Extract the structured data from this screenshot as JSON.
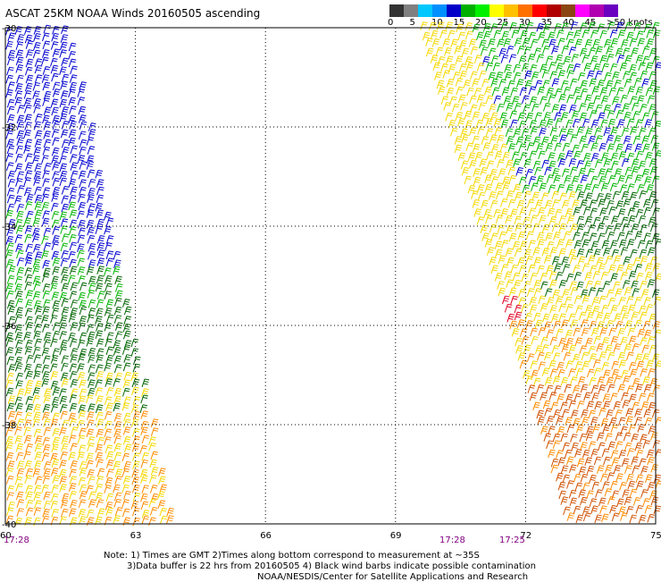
{
  "title": "ASCAT 25KM NOAA Winds 20160505 ascending",
  "colorbar": {
    "colors": [
      "#333333",
      "#808080",
      "#00c8ff",
      "#0090ff",
      "#0000c8",
      "#00b000",
      "#00f000",
      "#ffff00",
      "#ffc000",
      "#ff7000",
      "#ff0000",
      "#b00000",
      "#8b4513",
      "#ff00ff",
      "#b000b0",
      "#6a00c0"
    ],
    "labels": [
      "0",
      "5",
      "10",
      "15",
      "20",
      "25",
      "30",
      "35",
      "40",
      "45",
      ">50 knots"
    ]
  },
  "axes": {
    "lon_labels": [
      "60",
      "63",
      "66",
      "69",
      "72",
      "75"
    ],
    "lat_labels": [
      "-30",
      "-32",
      "-34",
      "-36",
      "-38",
      "-40"
    ]
  },
  "time_labels": [
    "17:28",
    "17:28",
    "17:25"
  ],
  "notes": [
    "Note: 1) Times are GMT 2)Times along bottom correspond to measurement at ~35S",
    "3)Data buffer is 22 hrs from 20160505 4) Black wind barbs indicate possible contamination",
    "NOAA/NESDIS/Center for Satellite Applications and Research"
  ],
  "wind_legend_colors": {
    "blue": "#0000d0",
    "green": "#00b400",
    "dark_green": "#006400",
    "yellow": "#f5d800",
    "orange": "#ff8c00",
    "dark_orange": "#d05000",
    "red": "#e00020"
  }
}
